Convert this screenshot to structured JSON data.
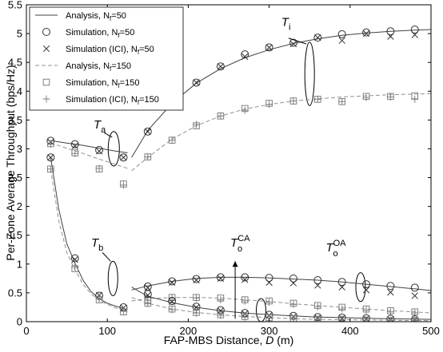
{
  "chart_data": {
    "type": "line",
    "title": "",
    "xlabel": "FAP-MBS Distance, D (m)",
    "ylabel": "Per-Zone Average Throughput (bps/Hz)",
    "xlim": [
      0,
      500
    ],
    "ylim": [
      0,
      5.5
    ],
    "xticks": [
      0,
      100,
      200,
      300,
      400,
      500
    ],
    "yticks": [
      0,
      0.5,
      1,
      1.5,
      2,
      2.5,
      3,
      3.5,
      4,
      4.5,
      5,
      5.5
    ],
    "grid": false,
    "legend_position": "top-left",
    "legend": [
      {
        "label": "Analysis, N",
        "sub": "f",
        "suffix": "=50",
        "style": "solid"
      },
      {
        "label": "Simulation, N",
        "sub": "f",
        "suffix": "=50",
        "style": "circle"
      },
      {
        "label": "Simulation (ICI), N",
        "sub": "f",
        "suffix": "=50",
        "style": "cross"
      },
      {
        "label": "Analysis, N",
        "sub": "f",
        "suffix": "=150",
        "style": "dashed"
      },
      {
        "label": "Simulation, N",
        "sub": "f",
        "suffix": "=150",
        "style": "square"
      },
      {
        "label": "Simulation (ICI), N",
        "sub": "f",
        "suffix": "=150",
        "style": "plus"
      }
    ],
    "annotations": [
      {
        "base": "T",
        "sub": "i",
        "sup": "",
        "x": 315,
        "y": 5.13
      },
      {
        "base": "T",
        "sub": "a",
        "sup": "",
        "x": 83,
        "y": 3.35
      },
      {
        "base": "T",
        "sub": "b",
        "sup": "",
        "x": 80,
        "y": 1.3
      },
      {
        "base": "T",
        "sub": "o",
        "sup": "CA",
        "x": 252,
        "y": 1.3
      },
      {
        "base": "T",
        "sub": "o",
        "sup": "OA",
        "x": 370,
        "y": 1.22
      }
    ],
    "series": [
      {
        "name": "Analysis, Nf=50",
        "group": "Ta",
        "style": "solid",
        "color": "#404040",
        "x": [
          30,
          50,
          70,
          90,
          110,
          125
        ],
        "y": [
          3.14,
          3.1,
          3.06,
          3.01,
          2.96,
          2.93
        ]
      },
      {
        "name": "Analysis, Nf=150",
        "group": "Ta",
        "style": "dashed",
        "color": "#909090",
        "x": [
          30,
          50,
          70,
          90,
          110,
          125
        ],
        "y": [
          3.1,
          3.01,
          2.92,
          2.82,
          2.73,
          2.66
        ]
      },
      {
        "name": "Simulation, Nf=50",
        "group": "Ta",
        "style": "circle",
        "color": "#303030",
        "x": [
          30,
          60,
          90,
          120
        ],
        "y": [
          3.14,
          3.08,
          2.98,
          2.85
        ]
      },
      {
        "name": "Simulation (ICI), Nf=50",
        "group": "Ta",
        "style": "cross",
        "color": "#303030",
        "x": [
          30,
          60,
          90,
          120
        ],
        "y": [
          3.12,
          3.05,
          2.96,
          2.85
        ]
      },
      {
        "name": "Simulation, Nf=150",
        "group": "Ta",
        "style": "square",
        "color": "#808080",
        "x": [
          30,
          60,
          90,
          120
        ],
        "y": [
          3.09,
          2.93,
          2.65,
          2.39
        ]
      },
      {
        "name": "Simulation (ICI), Nf=150",
        "group": "Ta",
        "style": "plus",
        "color": "#808080",
        "x": [
          30,
          60,
          90,
          120
        ],
        "y": [
          3.08,
          2.92,
          2.66,
          2.37
        ]
      },
      {
        "name": "Analysis, Nf=50",
        "group": "Tb",
        "style": "solid",
        "color": "#404040",
        "x": [
          30,
          40,
          50,
          60,
          70,
          80,
          90,
          100,
          110,
          125
        ],
        "y": [
          2.85,
          1.95,
          1.35,
          1.02,
          0.72,
          0.52,
          0.4,
          0.32,
          0.27,
          0.21
        ]
      },
      {
        "name": "Analysis, Nf=150",
        "group": "Tb",
        "style": "dashed",
        "color": "#909090",
        "x": [
          30,
          40,
          50,
          60,
          70,
          80,
          90,
          100,
          110,
          125
        ],
        "y": [
          2.65,
          1.75,
          1.2,
          0.9,
          0.65,
          0.48,
          0.37,
          0.3,
          0.24,
          0.18
        ]
      },
      {
        "name": "Simulation, Nf=50",
        "group": "Tb",
        "style": "circle",
        "color": "#303030",
        "x": [
          30,
          60,
          90,
          120
        ],
        "y": [
          2.85,
          1.1,
          0.45,
          0.25
        ]
      },
      {
        "name": "Simulation (ICI), Nf=50",
        "group": "Tb",
        "style": "cross",
        "color": "#303030",
        "x": [
          30,
          60,
          90,
          120
        ],
        "y": [
          2.85,
          1.08,
          0.46,
          0.24
        ]
      },
      {
        "name": "Simulation, Nf=150",
        "group": "Tb",
        "style": "square",
        "color": "#808080",
        "x": [
          30,
          60,
          90,
          120
        ],
        "y": [
          2.65,
          0.92,
          0.38,
          0.17
        ]
      },
      {
        "name": "Simulation (ICI), Nf=150",
        "group": "Tb",
        "style": "plus",
        "color": "#808080",
        "x": [
          30,
          60,
          90,
          120
        ],
        "y": [
          2.65,
          0.95,
          0.4,
          0.18
        ]
      },
      {
        "name": "Analysis, Nf=50",
        "group": "Ti",
        "style": "solid",
        "color": "#404040",
        "x": [
          130,
          150,
          180,
          210,
          240,
          270,
          300,
          330,
          360,
          390,
          420,
          450,
          480,
          500
        ],
        "y": [
          2.85,
          3.32,
          3.79,
          4.14,
          4.39,
          4.58,
          4.72,
          4.83,
          4.91,
          4.97,
          5.01,
          5.04,
          5.06,
          5.07
        ]
      },
      {
        "name": "Analysis, Nf=150",
        "group": "Ti",
        "style": "dashed",
        "color": "#909090",
        "x": [
          130,
          150,
          180,
          210,
          240,
          270,
          300,
          330,
          360,
          390,
          420,
          450,
          480,
          500
        ],
        "y": [
          2.62,
          2.85,
          3.17,
          3.4,
          3.57,
          3.69,
          3.77,
          3.83,
          3.87,
          3.9,
          3.92,
          3.94,
          3.95,
          3.96
        ]
      },
      {
        "name": "Simulation, Nf=50",
        "group": "Ti",
        "style": "circle",
        "color": "#303030",
        "x": [
          150,
          180,
          210,
          240,
          270,
          300,
          330,
          360,
          390,
          420,
          450,
          480
        ],
        "y": [
          3.3,
          3.8,
          4.15,
          4.43,
          4.64,
          4.76,
          4.84,
          4.93,
          4.99,
          5.02,
          5.04,
          5.07
        ]
      },
      {
        "name": "Simulation (ICI), Nf=50",
        "group": "Ti",
        "style": "cross",
        "color": "#303030",
        "x": [
          150,
          180,
          210,
          240,
          270,
          300,
          330,
          360,
          390,
          420,
          450,
          480
        ],
        "y": [
          3.3,
          3.78,
          4.15,
          4.43,
          4.6,
          4.76,
          4.82,
          4.93,
          4.88,
          5.0,
          4.95,
          4.98
        ]
      },
      {
        "name": "Simulation, Nf=150",
        "group": "Ti",
        "style": "square",
        "color": "#808080",
        "x": [
          150,
          180,
          210,
          240,
          270,
          300,
          330,
          360,
          390,
          420,
          450,
          480
        ],
        "y": [
          2.86,
          3.15,
          3.4,
          3.57,
          3.7,
          3.79,
          3.83,
          3.86,
          3.82,
          3.91,
          3.91,
          3.92
        ]
      },
      {
        "name": "Simulation (ICI), Nf=150",
        "group": "Ti",
        "style": "plus",
        "color": "#808080",
        "x": [
          150,
          180,
          210,
          240,
          270,
          300,
          330,
          360,
          390,
          420,
          450,
          480
        ],
        "y": [
          2.86,
          3.15,
          3.42,
          3.57,
          3.67,
          3.77,
          3.83,
          3.86,
          3.82,
          3.89,
          3.9,
          3.86
        ]
      },
      {
        "name": "Analysis, Nf=50",
        "group": "ToOA",
        "style": "solid",
        "color": "#404040",
        "x": [
          130,
          150,
          180,
          210,
          240,
          270,
          300,
          330,
          360,
          390,
          420,
          450,
          480,
          500
        ],
        "y": [
          0.55,
          0.62,
          0.7,
          0.75,
          0.77,
          0.77,
          0.76,
          0.74,
          0.72,
          0.69,
          0.65,
          0.61,
          0.57,
          0.54
        ]
      },
      {
        "name": "Analysis, Nf=150",
        "group": "ToOA",
        "style": "dashed",
        "color": "#909090",
        "x": [
          130,
          150,
          180,
          210,
          240,
          270,
          300,
          330,
          360,
          390,
          420,
          450,
          480,
          500
        ],
        "y": [
          0.36,
          0.4,
          0.42,
          0.42,
          0.41,
          0.38,
          0.35,
          0.31,
          0.28,
          0.25,
          0.22,
          0.19,
          0.17,
          0.15
        ]
      },
      {
        "name": "Simulation, Nf=50",
        "group": "ToOA",
        "style": "circle",
        "color": "#303030",
        "x": [
          150,
          180,
          210,
          240,
          270,
          300,
          330,
          360,
          390,
          420,
          450,
          480
        ],
        "y": [
          0.61,
          0.7,
          0.74,
          0.77,
          0.77,
          0.76,
          0.75,
          0.72,
          0.69,
          0.65,
          0.62,
          0.59
        ]
      },
      {
        "name": "Simulation (ICI), Nf=50",
        "group": "ToOA",
        "style": "cross",
        "color": "#303030",
        "x": [
          150,
          180,
          210,
          240,
          270,
          300,
          330,
          360,
          390,
          420,
          450,
          480
        ],
        "y": [
          0.59,
          0.68,
          0.72,
          0.75,
          0.73,
          0.68,
          0.67,
          0.63,
          0.6,
          0.55,
          0.51,
          0.45
        ]
      },
      {
        "name": "Simulation, Nf=150",
        "group": "ToOA",
        "style": "square",
        "color": "#808080",
        "x": [
          150,
          180,
          210,
          240,
          270,
          300,
          330,
          360,
          390,
          420,
          450,
          480
        ],
        "y": [
          0.38,
          0.42,
          0.42,
          0.41,
          0.38,
          0.36,
          0.32,
          0.28,
          0.25,
          0.22,
          0.19,
          0.17
        ]
      },
      {
        "name": "Simulation (ICI), Nf=150",
        "group": "ToOA",
        "style": "plus",
        "color": "#808080",
        "x": [
          150,
          180,
          210,
          240,
          270,
          300,
          330,
          360,
          390,
          420,
          450,
          480
        ],
        "y": [
          0.37,
          0.41,
          0.41,
          0.38,
          0.36,
          0.34,
          0.3,
          0.26,
          0.22,
          0.2,
          0.17,
          0.15
        ]
      },
      {
        "name": "Analysis, Nf=50",
        "group": "ToCA",
        "style": "solid",
        "color": "#404040",
        "x": [
          130,
          150,
          180,
          210,
          240,
          270,
          300,
          330,
          360,
          390,
          420,
          450,
          480,
          500
        ],
        "y": [
          0.6,
          0.44,
          0.33,
          0.25,
          0.19,
          0.15,
          0.12,
          0.1,
          0.08,
          0.07,
          0.06,
          0.05,
          0.045,
          0.04
        ]
      },
      {
        "name": "Analysis, Nf=150",
        "group": "ToCA",
        "style": "dashed",
        "color": "#909090",
        "x": [
          130,
          150,
          180,
          210,
          240,
          270,
          300,
          330,
          360,
          390,
          420,
          450,
          480,
          500
        ],
        "y": [
          0.42,
          0.32,
          0.22,
          0.16,
          0.12,
          0.09,
          0.07,
          0.05,
          0.04,
          0.035,
          0.03,
          0.025,
          0.02,
          0.02
        ]
      },
      {
        "name": "Simulation, Nf=50",
        "group": "ToCA",
        "style": "circle",
        "color": "#303030",
        "x": [
          150,
          180,
          210,
          240,
          270,
          300,
          330,
          360,
          390,
          420,
          450,
          480
        ],
        "y": [
          0.48,
          0.36,
          0.26,
          0.2,
          0.15,
          0.12,
          0.1,
          0.08,
          0.07,
          0.06,
          0.05,
          0.04
        ]
      },
      {
        "name": "Simulation (ICI), Nf=50",
        "group": "ToCA",
        "style": "cross",
        "color": "#303030",
        "x": [
          150,
          180,
          210,
          240,
          270,
          300,
          330,
          360,
          390,
          420,
          450,
          480
        ],
        "y": [
          0.46,
          0.35,
          0.25,
          0.19,
          0.14,
          0.11,
          0.09,
          0.07,
          0.06,
          0.05,
          0.04,
          0.03
        ]
      },
      {
        "name": "Simulation, Nf=150",
        "group": "ToCA",
        "style": "square",
        "color": "#808080",
        "x": [
          150,
          180,
          210,
          240,
          270,
          300,
          330,
          360,
          390,
          420,
          450,
          480
        ],
        "y": [
          0.32,
          0.22,
          0.16,
          0.12,
          0.09,
          0.07,
          0.05,
          0.04,
          0.04,
          0.03,
          0.02,
          0.02
        ]
      },
      {
        "name": "Simulation (ICI), Nf=150",
        "group": "ToCA",
        "style": "plus",
        "color": "#808080",
        "x": [
          150,
          180,
          210,
          240,
          270,
          300,
          330,
          360,
          390,
          420,
          450,
          480
        ],
        "y": [
          0.31,
          0.21,
          0.15,
          0.11,
          0.08,
          0.06,
          0.05,
          0.04,
          0.03,
          0.03,
          0.02,
          0.02
        ]
      }
    ]
  }
}
